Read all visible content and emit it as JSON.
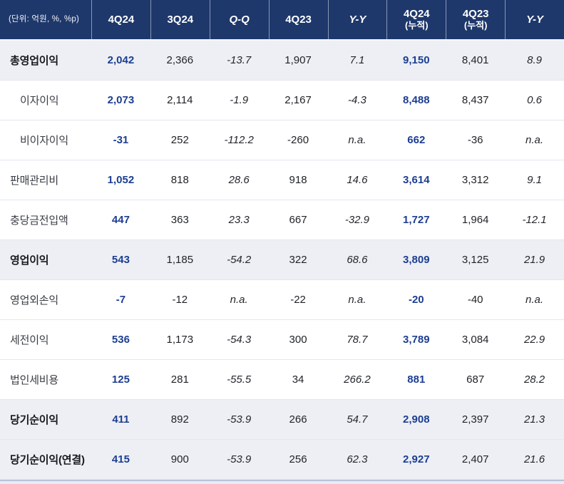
{
  "meta": {
    "unit_label": "(단위: 억원, %, %p)"
  },
  "colors": {
    "header_bg": "#1E386B",
    "accent_navy": "#1C3E91",
    "highlight_row_bg": "#EDEFF5",
    "border": "#E3E6ED",
    "bottom_line": "#B9C3D9"
  },
  "table": {
    "columns": [
      {
        "label": "4Q24",
        "sub": "",
        "italic": false
      },
      {
        "label": "3Q24",
        "sub": "",
        "italic": false
      },
      {
        "label": "Q-Q",
        "sub": "",
        "italic": true
      },
      {
        "label": "4Q23",
        "sub": "",
        "italic": false
      },
      {
        "label": "Y-Y",
        "sub": "",
        "italic": true
      },
      {
        "label": "4Q24",
        "sub": "(누적)",
        "italic": false
      },
      {
        "label": "4Q23",
        "sub": "(누적)",
        "italic": false
      },
      {
        "label": "Y-Y",
        "sub": "",
        "italic": true
      }
    ],
    "navy_columns": [
      0,
      5
    ],
    "italic_columns": [
      2,
      4,
      7
    ],
    "rows": [
      {
        "label": "총영업이익",
        "emphasis": true,
        "indent": false,
        "values": [
          "2,042",
          "2,366",
          "-13.7",
          "1,907",
          "7.1",
          "9,150",
          "8,401",
          "8.9"
        ]
      },
      {
        "label": "이자이익",
        "emphasis": false,
        "indent": true,
        "values": [
          "2,073",
          "2,114",
          "-1.9",
          "2,167",
          "-4.3",
          "8,488",
          "8,437",
          "0.6"
        ]
      },
      {
        "label": "비이자이익",
        "emphasis": false,
        "indent": true,
        "values": [
          "-31",
          "252",
          "-112.2",
          "-260",
          "n.a.",
          "662",
          "-36",
          "n.a."
        ]
      },
      {
        "label": "판매관리비",
        "emphasis": false,
        "indent": false,
        "values": [
          "1,052",
          "818",
          "28.6",
          "918",
          "14.6",
          "3,614",
          "3,312",
          "9.1"
        ]
      },
      {
        "label": "충당금전입액",
        "emphasis": false,
        "indent": false,
        "values": [
          "447",
          "363",
          "23.3",
          "667",
          "-32.9",
          "1,727",
          "1,964",
          "-12.1"
        ]
      },
      {
        "label": "영업이익",
        "emphasis": true,
        "indent": false,
        "values": [
          "543",
          "1,185",
          "-54.2",
          "322",
          "68.6",
          "3,809",
          "3,125",
          "21.9"
        ]
      },
      {
        "label": "영업외손익",
        "emphasis": false,
        "indent": false,
        "values": [
          "-7",
          "-12",
          "n.a.",
          "-22",
          "n.a.",
          "-20",
          "-40",
          "n.a."
        ]
      },
      {
        "label": "세전이익",
        "emphasis": false,
        "indent": false,
        "values": [
          "536",
          "1,173",
          "-54.3",
          "300",
          "78.7",
          "3,789",
          "3,084",
          "22.9"
        ]
      },
      {
        "label": "법인세비용",
        "emphasis": false,
        "indent": false,
        "values": [
          "125",
          "281",
          "-55.5",
          "34",
          "266.2",
          "881",
          "687",
          "28.2"
        ]
      },
      {
        "label": "당기순이익",
        "emphasis": true,
        "indent": false,
        "values": [
          "411",
          "892",
          "-53.9",
          "266",
          "54.7",
          "2,908",
          "2,397",
          "21.3"
        ]
      },
      {
        "label": "당기순이익(연결)",
        "emphasis": true,
        "indent": false,
        "values": [
          "415",
          "900",
          "-53.9",
          "256",
          "62.3",
          "2,927",
          "2,407",
          "21.6"
        ]
      }
    ]
  }
}
